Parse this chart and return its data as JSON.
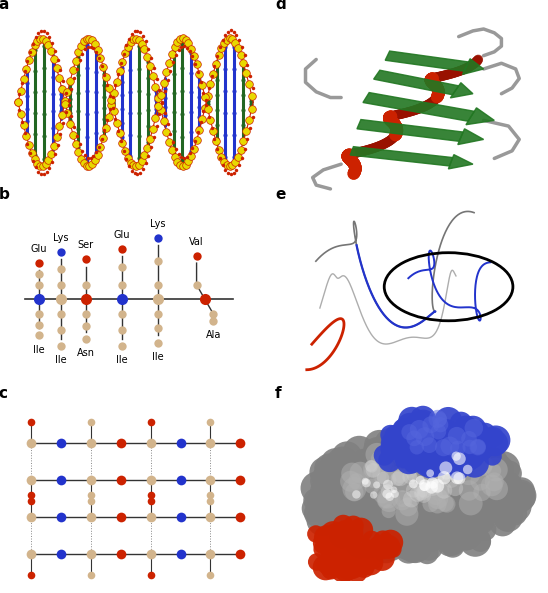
{
  "figure_width": 5.48,
  "figure_height": 5.93,
  "dpi": 100,
  "background_color": "#ffffff",
  "panel_label_fontsize": 11,
  "panel_label_fontweight": "bold",
  "panel_positions": {
    "a": [
      0.02,
      0.675,
      0.455,
      0.305
    ],
    "b": [
      0.02,
      0.355,
      0.455,
      0.305
    ],
    "c": [
      0.02,
      0.02,
      0.455,
      0.305
    ],
    "d": [
      0.525,
      0.675,
      0.455,
      0.305
    ],
    "e": [
      0.525,
      0.355,
      0.455,
      0.305
    ],
    "f": [
      0.525,
      0.02,
      0.455,
      0.305
    ]
  },
  "dna_colors": {
    "yellow": "#e8d800",
    "red": "#cc2200",
    "blue": "#2233cc",
    "green": "#226622"
  },
  "protein_colors": {
    "tan": "#d2b48c",
    "red": "#cc2200",
    "blue": "#2233cc",
    "dark": "#444444"
  },
  "ribbon_colors": {
    "helix": "#cc2200",
    "sheet": "#227722",
    "loop": "#999999"
  },
  "surface_colors": {
    "main": "#808080",
    "blue_region": "#3344cc",
    "red_region": "#cc2200",
    "highlight": "#dddddd"
  }
}
